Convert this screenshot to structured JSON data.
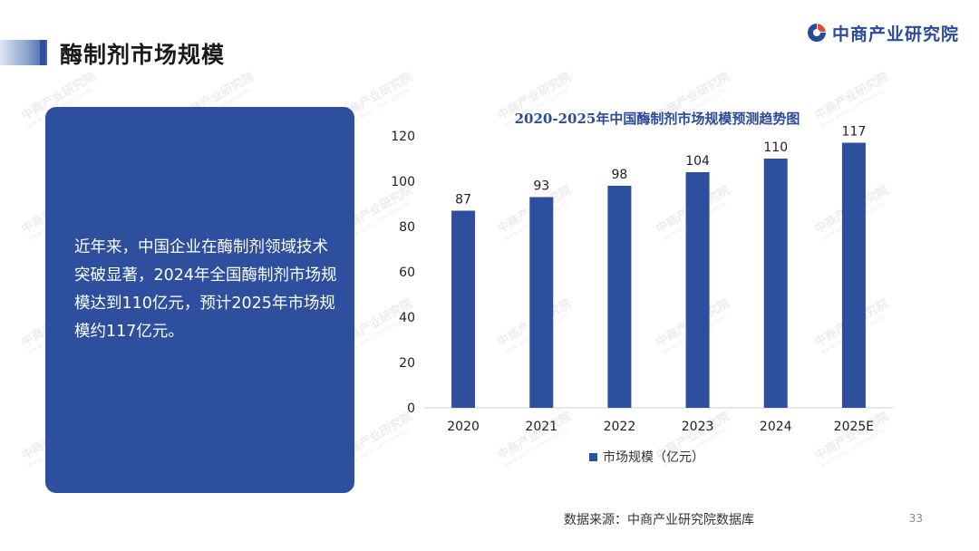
{
  "page": {
    "title": "酶制剂市场规模",
    "brand": "中商产业研究院",
    "description": "近年来，中国企业在酶制剂领域技术突破显著，2024年全国酶制剂市场规模达到110亿元，预计2025年市场规模约117亿元。",
    "source": "数据来源：中商产业研究院数据库",
    "page_number": "33",
    "watermark_cn": "中商产业研究院",
    "watermark_url": "www.askci.com/reports"
  },
  "colors": {
    "bar": "#2e4f9e",
    "panel": "#2e4f9e",
    "brand": "#2a4a9a",
    "title_accent": "#2f4f9c"
  },
  "chart_data": {
    "type": "bar",
    "title": "2020-2025年中国酶制剂市场规模预测趋势图",
    "categories": [
      "2020",
      "2021",
      "2022",
      "2023",
      "2024",
      "2025E"
    ],
    "series": [
      {
        "name": "市场规模（亿元）",
        "values": [
          87,
          93,
          98,
          104,
          110,
          117
        ]
      }
    ],
    "ylim": [
      0,
      120
    ],
    "yticks": [
      0,
      20,
      40,
      60,
      80,
      100,
      120
    ],
    "grid": false,
    "legend": "bottom",
    "data_labels": true
  }
}
